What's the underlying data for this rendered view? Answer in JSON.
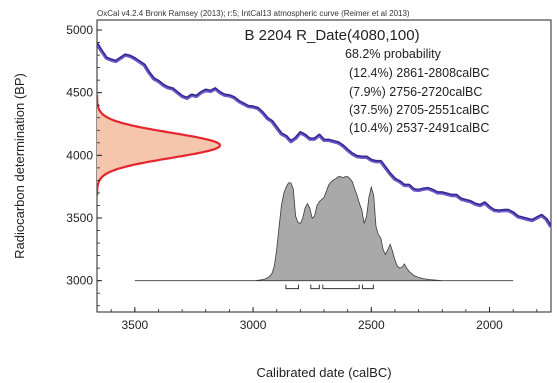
{
  "chart_data": {
    "type": "area",
    "header": "OxCal v4.2.4 Bronk Ramsey (2013); r:5; IntCal13 atmospheric curve (Reimer et al 2013)",
    "title": "B 2204 R_Date(4080,100)",
    "probability_heading": "68.2% probability",
    "ranges": [
      {
        "text": "(12.4%) 2861-2808calBC",
        "from": 2861,
        "to": 2808
      },
      {
        "text": "(7.9%) 2756-2720calBC",
        "from": 2756,
        "to": 2720
      },
      {
        "text": "(37.5%) 2705-2551calBC",
        "from": 2705,
        "to": 2551
      },
      {
        "text": "(10.4%) 2537-2491calBC",
        "from": 2537,
        "to": 2491
      }
    ],
    "xlabel": "Calibrated date (calBC)",
    "ylabel": "Radiocarbon determination (BP)",
    "xlim": [
      3660,
      1740
    ],
    "ylim": [
      2750,
      5080
    ],
    "xticks": [
      "3500",
      "3000",
      "2500",
      "2000"
    ],
    "yticks": [
      "3000",
      "3500",
      "4000",
      "4500",
      "5000"
    ],
    "radiocarbon_date": {
      "mean": 4080,
      "sigma": 100
    },
    "calibration_curve": {
      "name": "IntCal13",
      "x": [
        3660,
        3640,
        3620,
        3600,
        3580,
        3560,
        3540,
        3520,
        3500,
        3480,
        3460,
        3440,
        3420,
        3400,
        3380,
        3360,
        3340,
        3320,
        3300,
        3280,
        3260,
        3240,
        3220,
        3200,
        3180,
        3160,
        3140,
        3120,
        3100,
        3080,
        3060,
        3040,
        3020,
        3000,
        2980,
        2960,
        2940,
        2920,
        2900,
        2880,
        2860,
        2840,
        2820,
        2800,
        2780,
        2760,
        2740,
        2720,
        2700,
        2680,
        2660,
        2640,
        2620,
        2600,
        2580,
        2560,
        2540,
        2520,
        2500,
        2480,
        2460,
        2440,
        2420,
        2400,
        2380,
        2360,
        2340,
        2320,
        2300,
        2280,
        2260,
        2240,
        2220,
        2200,
        2180,
        2160,
        2140,
        2120,
        2100,
        2080,
        2060,
        2040,
        2020,
        2000,
        1980,
        1960,
        1940,
        1920,
        1900,
        1880,
        1860,
        1840,
        1820,
        1800,
        1780,
        1760,
        1740
      ],
      "y": [
        4890,
        4830,
        4775,
        4760,
        4750,
        4775,
        4800,
        4790,
        4770,
        4745,
        4720,
        4660,
        4610,
        4590,
        4560,
        4540,
        4530,
        4500,
        4470,
        4455,
        4480,
        4470,
        4500,
        4520,
        4510,
        4530,
        4500,
        4480,
        4475,
        4460,
        4430,
        4410,
        4390,
        4385,
        4375,
        4340,
        4295,
        4270,
        4220,
        4170,
        4150,
        4110,
        4135,
        4180,
        4160,
        4130,
        4130,
        4160,
        4120,
        4120,
        4110,
        4100,
        4075,
        4040,
        4010,
        3990,
        3985,
        3985,
        3960,
        3950,
        3950,
        3900,
        3850,
        3810,
        3790,
        3760,
        3760,
        3725,
        3720,
        3730,
        3735,
        3720,
        3700,
        3700,
        3690,
        3680,
        3680,
        3650,
        3640,
        3630,
        3610,
        3600,
        3620,
        3585,
        3560,
        3555,
        3560,
        3560,
        3540,
        3510,
        3500,
        3490,
        3480,
        3500,
        3520,
        3490,
        3430
      ]
    },
    "calibrated_distribution": {
      "baseline_y": 3000,
      "x": [
        3500,
        2990,
        2960,
        2945,
        2930,
        2920,
        2910,
        2900,
        2890,
        2880,
        2870,
        2860,
        2850,
        2840,
        2830,
        2820,
        2810,
        2800,
        2790,
        2780,
        2770,
        2760,
        2750,
        2740,
        2730,
        2720,
        2710,
        2700,
        2690,
        2680,
        2670,
        2660,
        2650,
        2640,
        2630,
        2620,
        2610,
        2600,
        2590,
        2580,
        2570,
        2560,
        2550,
        2540,
        2530,
        2520,
        2510,
        2500,
        2490,
        2480,
        2470,
        2460,
        2450,
        2440,
        2430,
        2420,
        2410,
        2400,
        2390,
        2380,
        2370,
        2360,
        2350,
        2340,
        2330,
        2320,
        2300,
        2280,
        2250,
        2200,
        1900
      ],
      "density": [
        0,
        0,
        0.01,
        0.02,
        0.04,
        0.07,
        0.14,
        0.3,
        0.52,
        0.72,
        0.84,
        0.9,
        0.94,
        0.94,
        0.88,
        0.62,
        0.56,
        0.55,
        0.6,
        0.7,
        0.74,
        0.7,
        0.6,
        0.62,
        0.72,
        0.76,
        0.78,
        0.8,
        0.86,
        0.92,
        0.95,
        0.97,
        0.98,
        1.0,
        1.0,
        0.99,
        1.0,
        1.0,
        0.98,
        0.95,
        0.88,
        0.82,
        0.74,
        0.68,
        0.55,
        0.62,
        0.8,
        0.9,
        0.82,
        0.52,
        0.44,
        0.41,
        0.3,
        0.25,
        0.3,
        0.35,
        0.28,
        0.2,
        0.14,
        0.12,
        0.13,
        0.16,
        0.12,
        0.09,
        0.07,
        0.05,
        0.03,
        0.02,
        0.01,
        0,
        0
      ]
    }
  }
}
